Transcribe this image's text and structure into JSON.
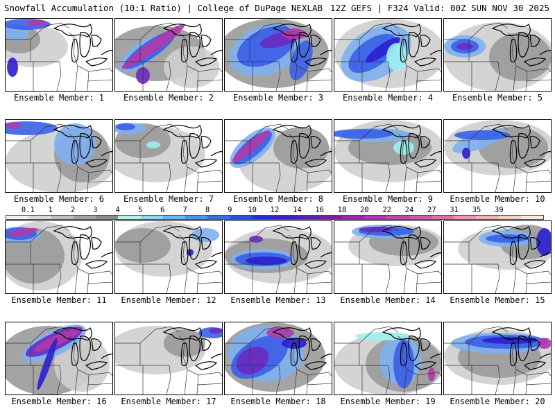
{
  "header": {
    "left_title": "Snowfall Accumulation (10:1 Ratio) | College of DuPage NEXLAB",
    "right_title": "12Z GEFS | F324 Valid: 00Z SUN NOV 30 2025"
  },
  "panels": [
    {
      "label": "Ensemble Member: 1"
    },
    {
      "label": "Ensemble Member: 2"
    },
    {
      "label": "Ensemble Member: 3"
    },
    {
      "label": "Ensemble Member: 4"
    },
    {
      "label": "Ensemble Member: 5"
    },
    {
      "label": "Ensemble Member: 6"
    },
    {
      "label": "Ensemble Member: 7"
    },
    {
      "label": "Ensemble Member: 8"
    },
    {
      "label": "Ensemble Member: 9"
    },
    {
      "label": "Ensemble Member: 10"
    },
    {
      "label": "Ensemble Member: 11"
    },
    {
      "label": "Ensemble Member: 12"
    },
    {
      "label": "Ensemble Member: 13"
    },
    {
      "label": "Ensemble Member: 14"
    },
    {
      "label": "Ensemble Member: 15"
    },
    {
      "label": "Ensemble Member: 16"
    },
    {
      "label": "Ensemble Member: 17"
    },
    {
      "label": "Ensemble Member: 18"
    },
    {
      "label": "Ensemble Member: 19"
    },
    {
      "label": "Ensemble Member: 20"
    }
  ],
  "colorbar": {
    "labels": [
      "0.1",
      "1",
      "2",
      "3",
      "4",
      "5",
      "6",
      "7",
      "8",
      "9",
      "10",
      "12",
      "14",
      "16",
      "18",
      "20",
      "22",
      "24",
      "27",
      "31",
      "35",
      "39"
    ],
    "colors": [
      "#f2f2f2",
      "#d9d9d9",
      "#bdbdbd",
      "#a3a3a3",
      "#8c8c8c",
      "#b8f0f0",
      "#8fd6f0",
      "#6fb6ee",
      "#4f93ea",
      "#3a6fe4",
      "#2a4ee0",
      "#2130d4",
      "#3a1fc4",
      "#5a1fb4",
      "#7a1fa8",
      "#9a28a8",
      "#b038a8",
      "#c248a8",
      "#d058a8",
      "#e070a8",
      "#e898b0",
      "#f0b8a8",
      "#f5d0c0",
      "#faeadd"
    ]
  },
  "legend_colors": {
    "light": "#cfcfcf",
    "gray": "#9a9a9a",
    "dark": "#777777",
    "cyan": "#9ff0f0",
    "lightblue": "#7fb0f0",
    "blue": "#3a5fe8",
    "darkblue": "#2a1fd0",
    "purple": "#6a2ac0",
    "magenta": "#b03aa8"
  }
}
